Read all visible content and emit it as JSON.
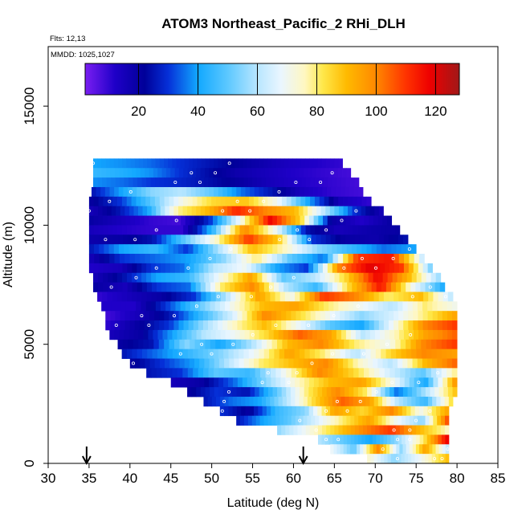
{
  "chart_data": {
    "type": "heatmap",
    "title": "ATOM3 Northeast_Pacific_2 RHi_DLH",
    "flights_label": "Flts: 12,13",
    "dates_label": "MMDD: 1025,1027",
    "xlabel": "Latitude (deg N)",
    "ylabel": "Altitude (m)",
    "xlim": [
      30,
      85
    ],
    "ylim": [
      0,
      17500
    ],
    "xticks": [
      30,
      35,
      40,
      45,
      50,
      55,
      60,
      65,
      70,
      75,
      80,
      85
    ],
    "yticks": [
      0,
      5000,
      10000,
      15000
    ],
    "colorbar": {
      "min": 2,
      "max": 128,
      "ticks": [
        20,
        40,
        60,
        80,
        100,
        120
      ],
      "stops": [
        {
          "v": 2,
          "color": "#7a1ef2"
        },
        {
          "v": 12,
          "color": "#1f00c8"
        },
        {
          "v": 22,
          "color": "#000099"
        },
        {
          "v": 30,
          "color": "#0530d8"
        },
        {
          "v": 40,
          "color": "#12a8ff"
        },
        {
          "v": 50,
          "color": "#5cc8ff"
        },
        {
          "v": 60,
          "color": "#b8e6ff"
        },
        {
          "v": 68,
          "color": "#eaf6ff"
        },
        {
          "v": 76,
          "color": "#fff7c0"
        },
        {
          "v": 82,
          "color": "#ffe84a"
        },
        {
          "v": 90,
          "color": "#ffba00"
        },
        {
          "v": 100,
          "color": "#ff8800"
        },
        {
          "v": 110,
          "color": "#ff3300"
        },
        {
          "v": 118,
          "color": "#ee0000"
        },
        {
          "v": 128,
          "color": "#a01818"
        }
      ]
    },
    "arrows_lat": [
      34.7,
      61.2
    ],
    "rows": [
      {
        "alt": 12400,
        "lat0": 35.5,
        "lat1": 66,
        "values": [
          40,
          38,
          35,
          30,
          26,
          22,
          18,
          14,
          12,
          10
        ]
      },
      {
        "alt": 12000,
        "lat0": 35.5,
        "lat1": 67,
        "values": [
          45,
          42,
          38,
          30,
          24,
          18,
          15,
          12,
          10,
          8
        ]
      },
      {
        "alt": 11600,
        "lat0": 35.5,
        "lat1": 68,
        "values": [
          38,
          35,
          30,
          28,
          24,
          20,
          15,
          12,
          10,
          8
        ]
      },
      {
        "alt": 11200,
        "lat0": 35.3,
        "lat1": 68.5,
        "values": [
          25,
          40,
          55,
          60,
          50,
          35,
          25,
          14,
          10,
          8
        ]
      },
      {
        "alt": 10800,
        "lat0": 35,
        "lat1": 69.5,
        "values": [
          20,
          30,
          50,
          72,
          85,
          88,
          70,
          40,
          15,
          10
        ]
      },
      {
        "alt": 10400,
        "lat0": 35,
        "lat1": 71,
        "values": [
          15,
          25,
          40,
          78,
          90,
          112,
          100,
          90,
          60,
          30,
          15
        ]
      },
      {
        "alt": 10000,
        "lat0": 35,
        "lat1": 72,
        "values": [
          20,
          15,
          10,
          8,
          30,
          70,
          118,
          85,
          20,
          12,
          20
        ]
      },
      {
        "alt": 9600,
        "lat0": 35,
        "lat1": 73,
        "values": [
          15,
          12,
          10,
          10,
          45,
          100,
          70,
          25,
          15,
          18,
          20
        ]
      },
      {
        "alt": 9200,
        "lat0": 35,
        "lat1": 74,
        "values": [
          18,
          20,
          25,
          50,
          75,
          110,
          85,
          30,
          20,
          18,
          25
        ]
      },
      {
        "alt": 8800,
        "lat0": 35,
        "lat1": 75,
        "values": [
          25,
          40,
          45,
          30,
          60,
          90,
          75,
          55,
          45,
          35,
          40
        ]
      },
      {
        "alt": 8400,
        "lat0": 35,
        "lat1": 76,
        "values": [
          15,
          30,
          35,
          40,
          55,
          80,
          50,
          35,
          110,
          115,
          60
        ]
      },
      {
        "alt": 8000,
        "lat0": 35,
        "lat1": 77,
        "values": [
          12,
          15,
          30,
          35,
          60,
          70,
          40,
          30,
          100,
          120,
          110,
          50
        ]
      },
      {
        "alt": 7600,
        "lat0": 35.5,
        "lat1": 78,
        "values": [
          15,
          25,
          40,
          45,
          70,
          95,
          50,
          60,
          85,
          118,
          90,
          55
        ]
      },
      {
        "alt": 7200,
        "lat0": 35.5,
        "lat1": 78.5,
        "values": [
          20,
          15,
          30,
          35,
          80,
          100,
          60,
          45,
          85,
          115,
          70,
          40
        ]
      },
      {
        "alt": 6800,
        "lat0": 36,
        "lat1": 79.5,
        "values": [
          10,
          15,
          20,
          30,
          60,
          95,
          70,
          110,
          100,
          80,
          90,
          60
        ]
      },
      {
        "alt": 6400,
        "lat0": 36.5,
        "lat1": 80,
        "values": [
          12,
          12,
          30,
          50,
          70,
          90,
          95,
          80,
          70,
          60,
          80,
          70
        ]
      },
      {
        "alt": 6000,
        "lat0": 37,
        "lat1": 80,
        "values": [
          8,
          15,
          25,
          45,
          65,
          100,
          85,
          70,
          55,
          65,
          80,
          95
        ]
      },
      {
        "alt": 5600,
        "lat0": 37,
        "lat1": 80,
        "values": [
          10,
          20,
          30,
          55,
          75,
          90,
          70,
          50,
          40,
          70,
          100,
          110
        ]
      },
      {
        "alt": 5200,
        "lat0": 37.5,
        "lat1": 80,
        "values": [
          15,
          20,
          40,
          60,
          70,
          85,
          105,
          95,
          60,
          75,
          95,
          105
        ]
      },
      {
        "alt": 4800,
        "lat0": 38.5,
        "lat1": 80,
        "values": [
          20,
          25,
          55,
          40,
          60,
          90,
          100,
          80,
          70,
          100,
          110
        ]
      },
      {
        "alt": 4400,
        "lat0": 39,
        "lat1": 80,
        "values": [
          25,
          35,
          45,
          55,
          70,
          95,
          80,
          60,
          85,
          100,
          95
        ]
      },
      {
        "alt": 4000,
        "lat0": 40,
        "lat1": 80,
        "values": [
          20,
          30,
          40,
          60,
          80,
          90,
          100,
          75,
          60,
          90,
          105
        ]
      },
      {
        "alt": 3600,
        "lat0": 42,
        "lat1": 80,
        "values": [
          25,
          30,
          50,
          45,
          70,
          100,
          85,
          65,
          50,
          80
        ]
      },
      {
        "alt": 3200,
        "lat0": 45,
        "lat1": 80,
        "values": [
          15,
          20,
          35,
          55,
          75,
          90,
          95,
          70,
          40,
          100
        ]
      },
      {
        "alt": 2800,
        "lat0": 47,
        "lat1": 80,
        "values": [
          20,
          30,
          25,
          50,
          80,
          100,
          80,
          35,
          60,
          90
        ]
      },
      {
        "alt": 2400,
        "lat0": 49,
        "lat1": 79.5,
        "values": [
          25,
          35,
          40,
          60,
          85,
          105,
          95,
          60,
          45,
          85
        ]
      },
      {
        "alt": 2000,
        "lat0": 51,
        "lat1": 79,
        "values": [
          30,
          20,
          45,
          55,
          95,
          85,
          100,
          70,
          95
        ]
      },
      {
        "alt": 1600,
        "lat0": 53,
        "lat1": 79,
        "values": [
          25,
          40,
          50,
          65,
          80,
          95,
          70,
          55,
          110
        ]
      },
      {
        "alt": 1200,
        "lat0": 58,
        "lat1": 79,
        "values": [
          55,
          70,
          85,
          100,
          110,
          90,
          75
        ]
      },
      {
        "alt": 800,
        "lat0": 63,
        "lat1": 79,
        "values": [
          60,
          50,
          40,
          55,
          80,
          120
        ]
      },
      {
        "alt": 400,
        "lat0": 64.5,
        "lat1": 79,
        "values": [
          70,
          50,
          100,
          55,
          95,
          60
        ]
      },
      {
        "alt": 0,
        "lat0": 69,
        "lat1": 79,
        "values": [
          75,
          55,
          70,
          90
        ]
      }
    ]
  }
}
